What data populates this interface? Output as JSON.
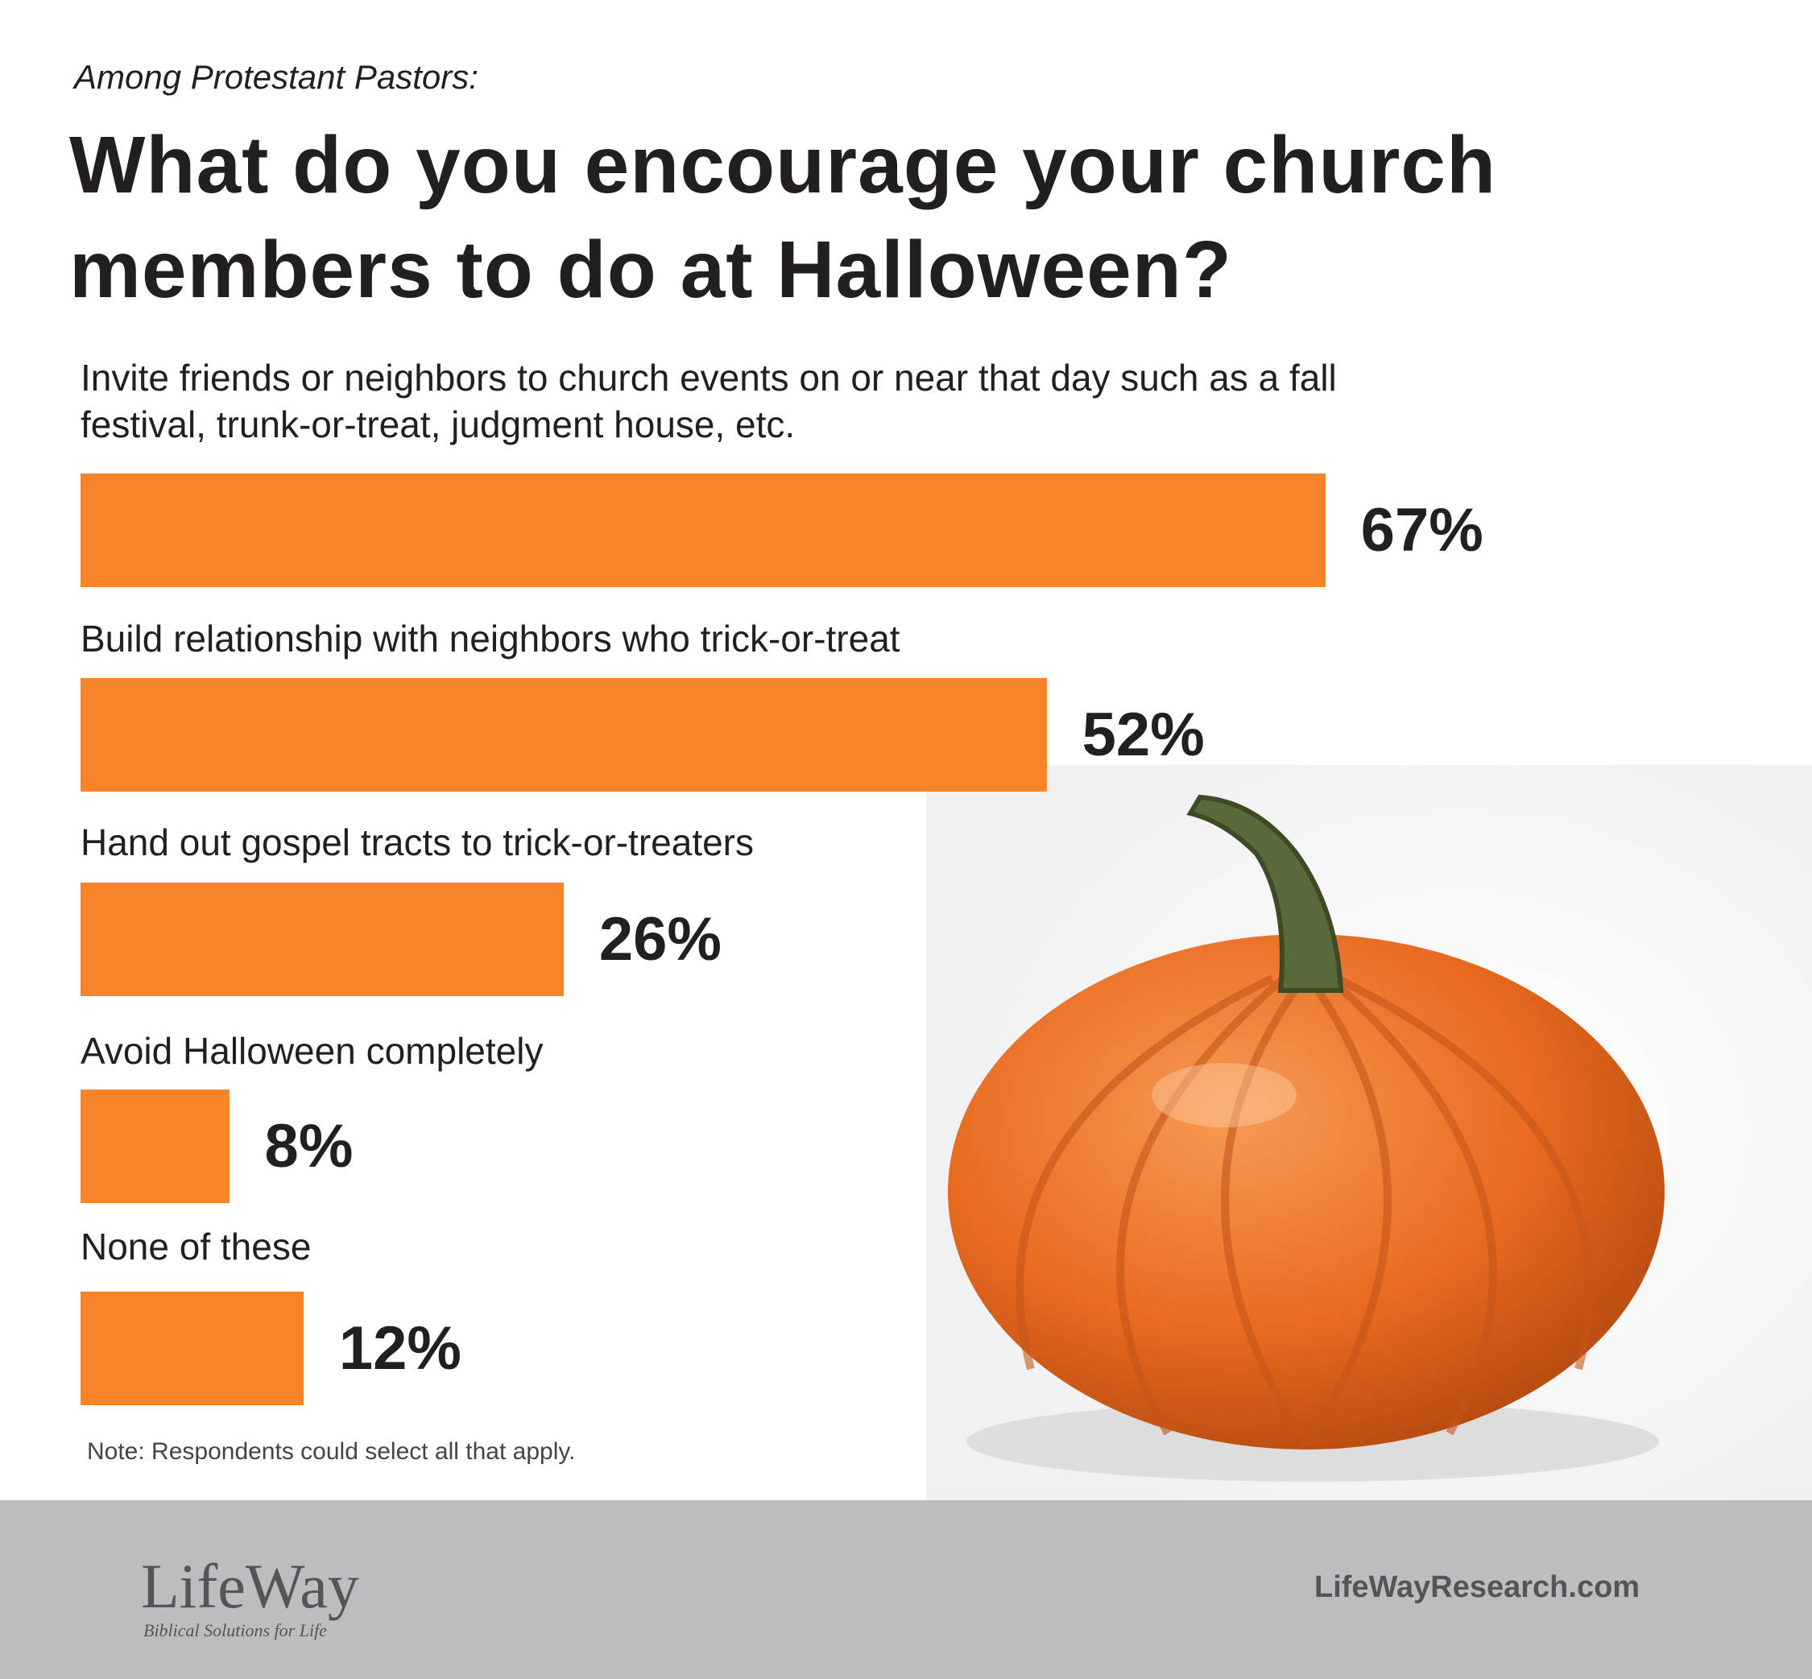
{
  "chart_data": {
    "type": "bar",
    "orientation": "horizontal",
    "subtitle": "Among Protestant Pastors:",
    "title": "What do you encourage your church members to do at Halloween?",
    "categories": [
      "Invite friends or neighbors to church events on or near that day such as a fall festival, trunk-or-treat, judgment house, etc.",
      "Build relationship with neighbors who trick-or-treat",
      "Hand out gospel tracts to trick-or-treaters",
      "Avoid Halloween completely",
      "None of these"
    ],
    "values": [
      67,
      52,
      26,
      8,
      12
    ],
    "value_labels": [
      "67%",
      "52%",
      "26%",
      "8%",
      "12%"
    ],
    "color": "#f5842a",
    "note": "Note: Respondents could select all that apply.",
    "footer": {
      "logo": "LifeWay",
      "tagline": "Biblical Solutions for Life",
      "url": "LifeWayResearch.com"
    }
  }
}
